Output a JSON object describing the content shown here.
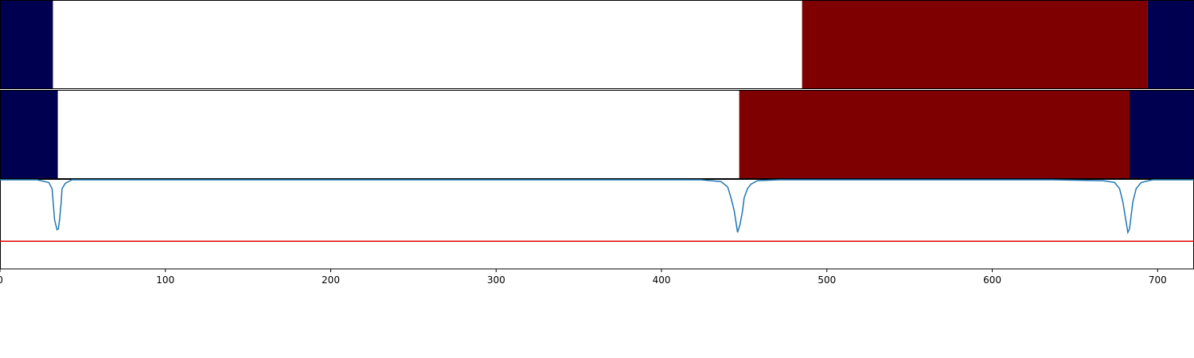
{
  "chart_data": {
    "type": "segmentation-comparison",
    "x_axis": {
      "range": [
        0,
        722
      ],
      "ticks": [
        0,
        100,
        200,
        300,
        400,
        500,
        600,
        700
      ]
    },
    "colors": {
      "dark_navy": "#000050",
      "white": "#ffffff",
      "dark_red": "#7f0000",
      "line": "#1f77b4",
      "threshold": "#e00000"
    },
    "panels": [
      {
        "name": "row-1",
        "segments": [
          {
            "start": 0,
            "end": 32,
            "color": "#000050"
          },
          {
            "start": 32,
            "end": 485,
            "color": "#ffffff"
          },
          {
            "start": 485,
            "end": 694,
            "color": "#7f0000"
          },
          {
            "start": 694,
            "end": 722,
            "color": "#000050"
          }
        ]
      },
      {
        "name": "row-2",
        "segments": [
          {
            "start": 0,
            "end": 35,
            "color": "#000050"
          },
          {
            "start": 35,
            "end": 447,
            "color": "#ffffff"
          },
          {
            "start": 447,
            "end": 683,
            "color": "#7f0000"
          },
          {
            "start": 683,
            "end": 722,
            "color": "#000050"
          }
        ]
      }
    ],
    "line_panel": {
      "ylim": [
        0,
        1
      ],
      "threshold": 0.31,
      "baseline": 1.0,
      "dips": [
        {
          "center": 34.5,
          "depth": 0.56,
          "shape": [
            [
              -12,
              0.0
            ],
            [
              -5,
              0.03
            ],
            [
              -3,
              0.1
            ],
            [
              -1.5,
              0.45
            ],
            [
              0,
              0.56
            ],
            [
              0.8,
              0.55
            ],
            [
              1.5,
              0.45
            ],
            [
              2.5,
              0.25
            ],
            [
              3,
              0.1
            ],
            [
              5,
              0.04
            ],
            [
              9,
              0.0
            ]
          ]
        },
        {
          "center": 446,
          "depth": 0.59,
          "shape": [
            [
              -22,
              0.0
            ],
            [
              -10,
              0.02
            ],
            [
              -6,
              0.08
            ],
            [
              -4,
              0.2
            ],
            [
              -2,
              0.35
            ],
            [
              0,
              0.59
            ],
            [
              1.5,
              0.5
            ],
            [
              3,
              0.35
            ],
            [
              4,
              0.2
            ],
            [
              6,
              0.1
            ],
            [
              8,
              0.05
            ],
            [
              12,
              0.01
            ],
            [
              25,
              0.0
            ]
          ]
        },
        {
          "center": 682,
          "depth": 0.59,
          "shape": [
            [
              -45,
              0.0
            ],
            [
              -15,
              0.01
            ],
            [
              -8,
              0.03
            ],
            [
              -5,
              0.1
            ],
            [
              -3,
              0.25
            ],
            [
              0,
              0.59
            ],
            [
              1,
              0.55
            ],
            [
              3,
              0.25
            ],
            [
              5,
              0.1
            ],
            [
              8,
              0.03
            ],
            [
              15,
              0.0
            ]
          ]
        }
      ]
    }
  }
}
